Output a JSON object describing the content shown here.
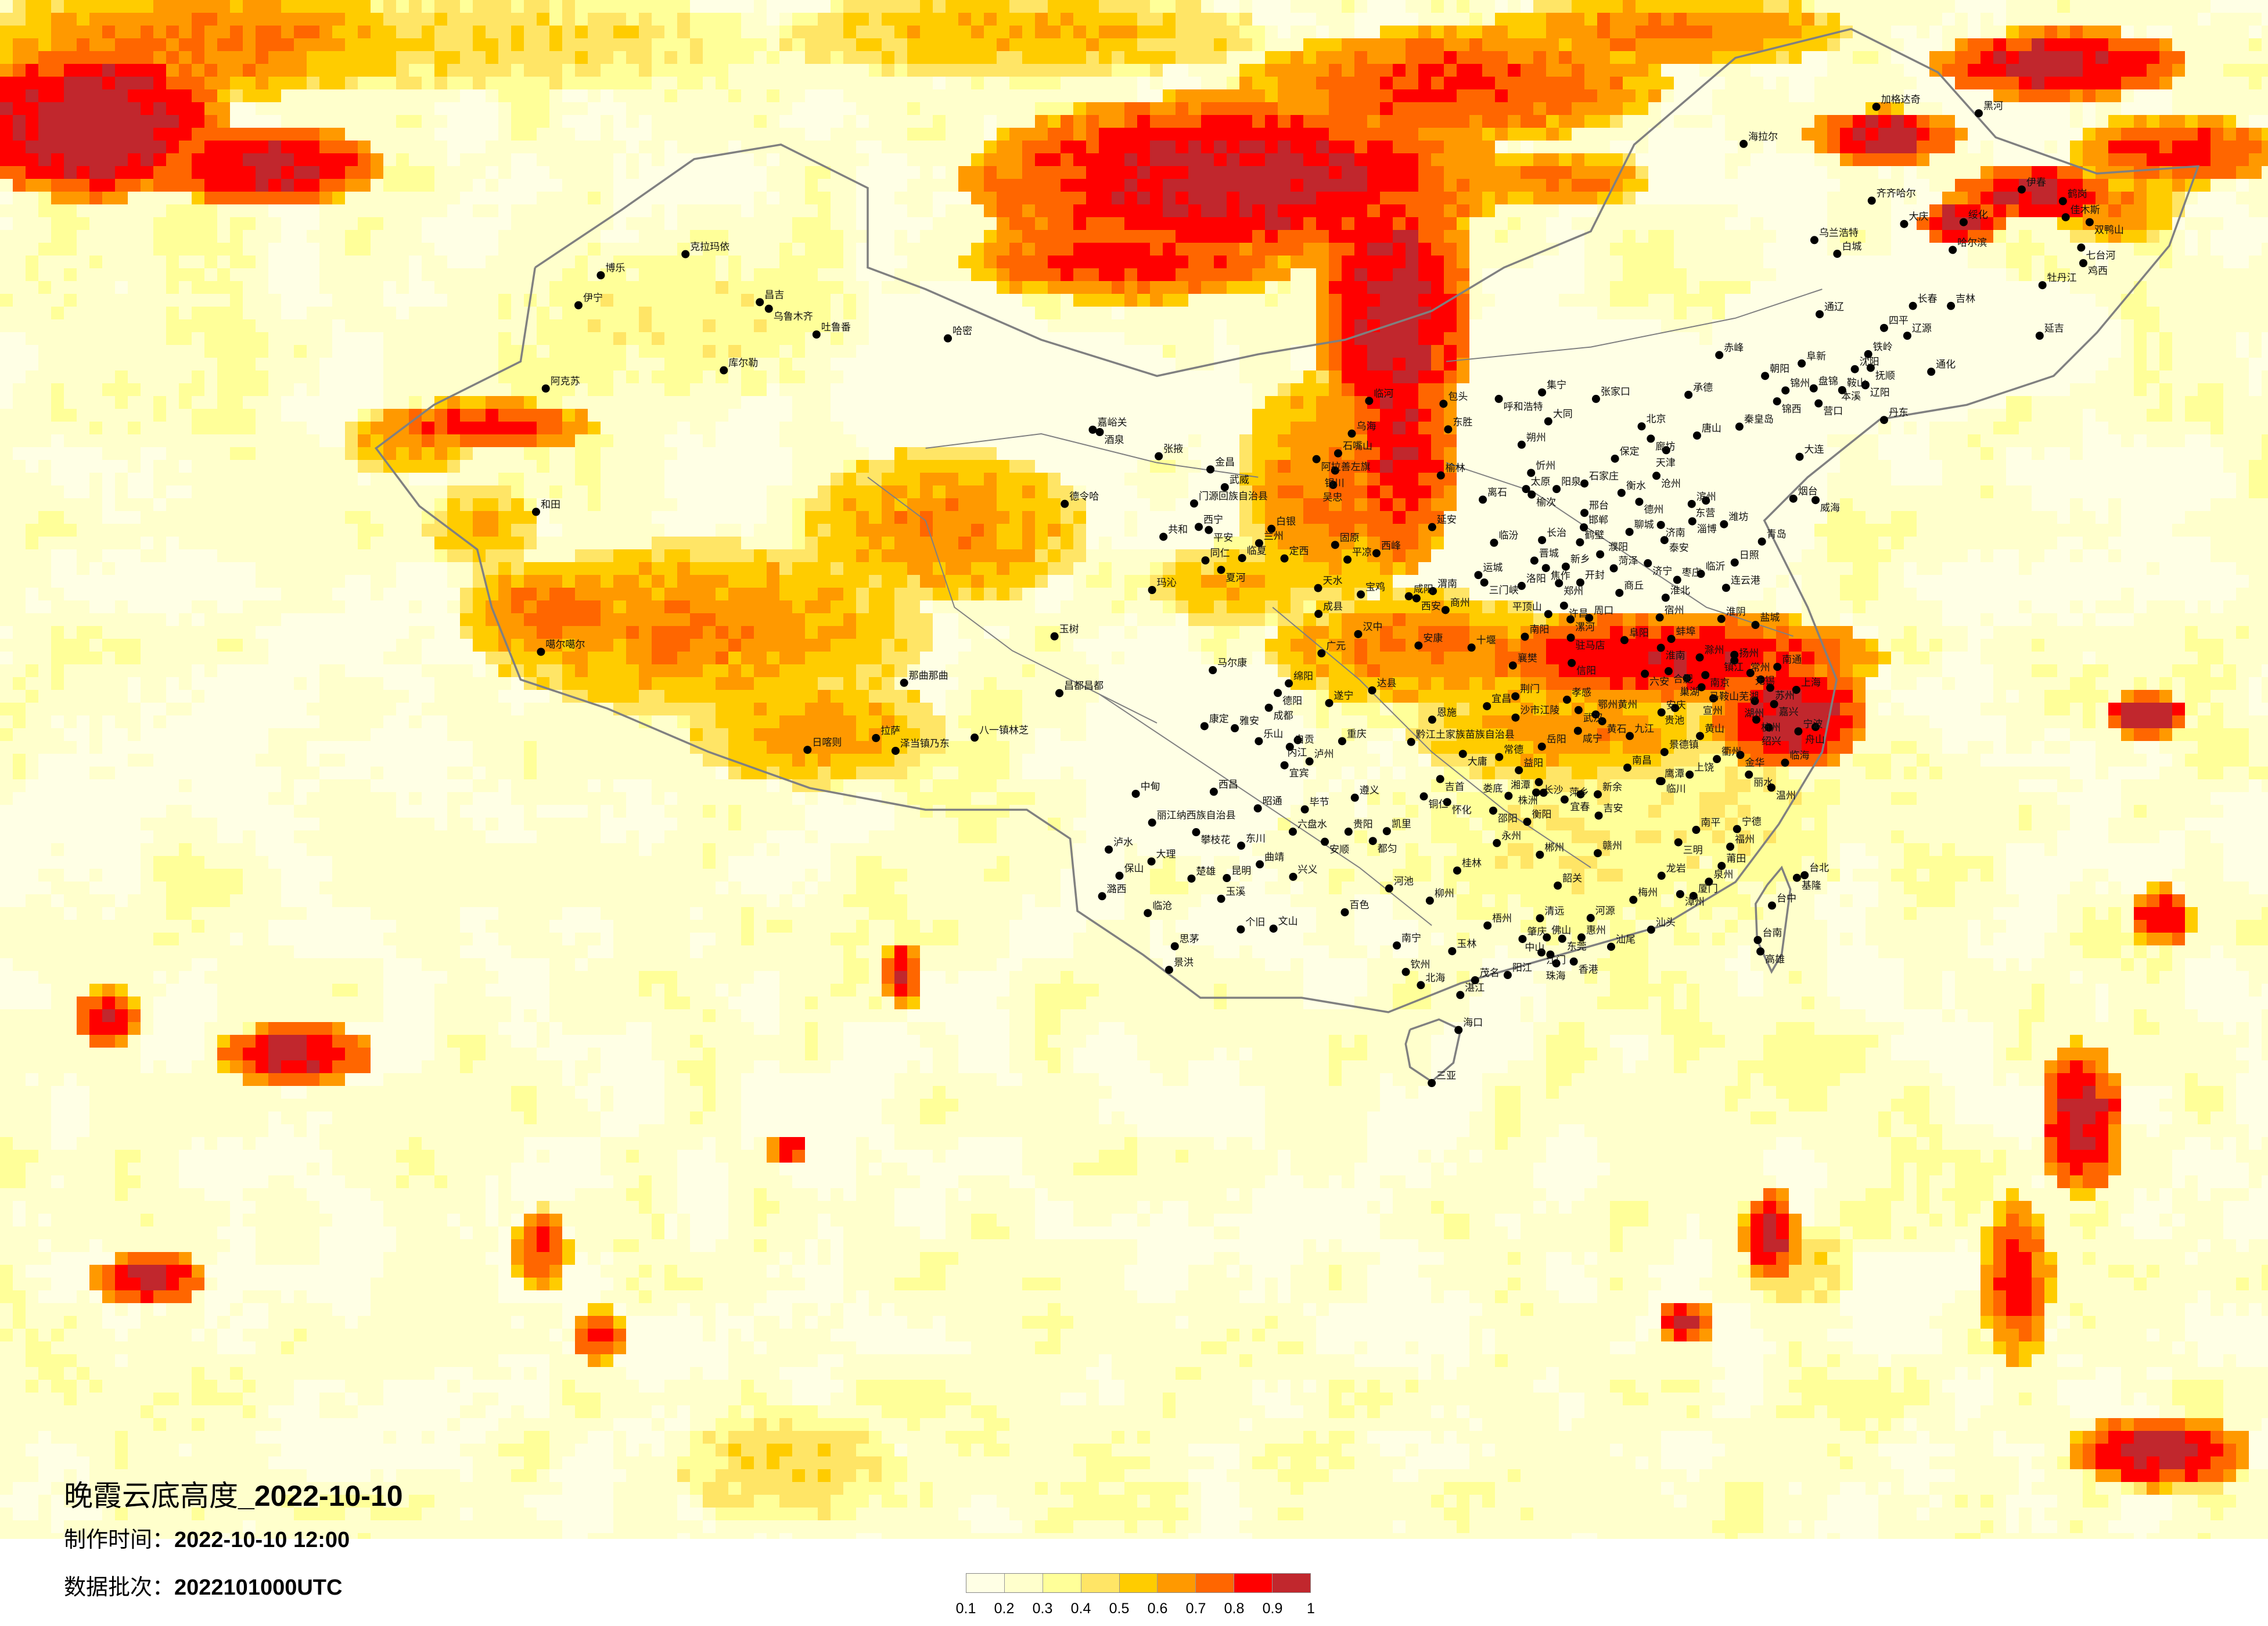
{
  "title": {
    "main": "晚霞云底高度",
    "separator": "_",
    "date": "2022-10-10"
  },
  "made_time": {
    "label": "制作时间：",
    "value": "2022-10-10 12:00"
  },
  "data_batch": {
    "label": "数据批次：",
    "value": "2022101000UTC"
  },
  "colorbar": {
    "colors": [
      "#FFFFE5",
      "#FFFFCC",
      "#FFFF99",
      "#FFE566",
      "#FFCC00",
      "#FF9900",
      "#FF6600",
      "#FF0000",
      "#C1272D"
    ],
    "labels": [
      "0.1",
      "0.2",
      "0.3",
      "0.4",
      "0.5",
      "0.6",
      "0.7",
      "0.8",
      "0.9",
      "1"
    ]
  },
  "border_color": "#808080",
  "cities": [
    "克拉玛依",
    "博乐",
    "伊宁",
    "昌吉",
    "乌鲁木齐",
    "吐鲁番",
    "哈密",
    "库尔勒",
    "阿克苏",
    "嘉峪关",
    "酒泉",
    "张掖",
    "金昌",
    "武威",
    "德令哈",
    "门源回族自治县",
    "西宁",
    "平安",
    "共和",
    "白银",
    "兰州",
    "临夏",
    "同仁",
    "夏河",
    "定西",
    "玛沁",
    "临河",
    "包头",
    "东胜",
    "乌海",
    "石嘴山",
    "阿拉善左旗",
    "银川",
    "吴忠",
    "榆林",
    "延安",
    "固原",
    "平凉",
    "西峰",
    "天水",
    "和田",
    "噶尔噶尔",
    "那曲那曲",
    "昌都昌都",
    "玉树",
    "拉萨",
    "日喀则",
    "泽当镇乃东",
    "八一镇林芝",
    "宝鸡",
    "咸阳",
    "西安",
    "渭南",
    "商州",
    "成县",
    "汉中",
    "安康",
    "十堰",
    "襄樊",
    "广元",
    "马尔康",
    "绵阳",
    "德阳",
    "成都",
    "达县",
    "遂宁",
    "康定",
    "雅安",
    "乐山",
    "自贡",
    "内江",
    "重庆",
    "宜宾",
    "泸州",
    "恩施",
    "沙市江陵",
    "黔江土家族苗族自治县",
    "大庸",
    "常德",
    "岳阳",
    "益阳",
    "长沙",
    "湘潭",
    "株洲",
    "娄底",
    "邵阳",
    "衡阳",
    "永州",
    "郴州",
    "吉首",
    "铜仁",
    "怀化",
    "遵义",
    "毕节",
    "昭通",
    "六盘水",
    "贵阳",
    "安顺",
    "凯里",
    "都匀",
    "西昌",
    "中甸",
    "丽江纳西族自治县",
    "攀枝花",
    "东川",
    "泸水",
    "大理",
    "保山",
    "潞西",
    "楚雄",
    "昆明",
    "曲靖",
    "兴义",
    "玉溪",
    "临沧",
    "个旧",
    "文山",
    "思茅",
    "景洪",
    "百色",
    "河池",
    "柳州",
    "桂林",
    "梧州",
    "南宁",
    "玉林",
    "钦州",
    "北海",
    "集宁",
    "呼和浩特",
    "张家口",
    "大同",
    "朔州",
    "忻州",
    "太原",
    "榆次",
    "阳泉",
    "离石",
    "临汾",
    "长治",
    "晋城",
    "运城",
    "三门峡",
    "洛阳",
    "焦作",
    "新乡",
    "鹤壁",
    "郑州",
    "开封",
    "许昌",
    "平顶山",
    "漯河",
    "周口",
    "驻马店",
    "信阳",
    "南阳",
    "商丘",
    "北京",
    "廊坊",
    "天津",
    "唐山",
    "承德",
    "赤峰",
    "保定",
    "沧州",
    "石家庄",
    "衡水",
    "邢台",
    "邯郸",
    "德州",
    "聊城",
    "济南",
    "泰安",
    "滨州",
    "东营",
    "淄博",
    "潍坊",
    "烟台",
    "威海",
    "青岛",
    "日照",
    "临沂",
    "枣庄",
    "济宁",
    "菏泽",
    "濮阳",
    "连云港",
    "淮北",
    "宿州",
    "淮阴",
    "盐城",
    "阜阳",
    "蚌埠",
    "淮南",
    "滁州",
    "扬州",
    "镇江",
    "南通",
    "秦皇岛",
    "六安",
    "合肥",
    "巢湖",
    "南京",
    "马鞍山芜湖",
    "无锡",
    "常州",
    "苏州",
    "上海",
    "湖州",
    "嘉兴",
    "杭州",
    "绍兴",
    "宁波",
    "舟山",
    "宣州",
    "安庆",
    "贵池",
    "黄山",
    "九江",
    "景德镇",
    "荆门",
    "宜昌",
    "孝感",
    "武汉",
    "鄂州黄州",
    "黄石",
    "咸宁",
    "南昌",
    "鹰潭",
    "上饶",
    "临川",
    "衢州",
    "金华",
    "丽水",
    "临海",
    "温州",
    "萍乡",
    "宜春",
    "新余",
    "吉安",
    "南平",
    "三明",
    "宁德",
    "福州",
    "莆田",
    "泉州",
    "厦门",
    "漳州",
    "龙岩",
    "赣州",
    "梅州",
    "汕头",
    "汕尾",
    "韶关",
    "清远",
    "河源",
    "惠州",
    "东莞",
    "佛山",
    "肇庆",
    "江门",
    "中山",
    "珠海",
    "香港",
    "阳江",
    "茂名",
    "湛江",
    "海口",
    "台北",
    "基隆",
    "台中",
    "台南",
    "高雄",
    "三亚",
    "加格达奇",
    "黑河",
    "海拉尔",
    "齐齐哈尔",
    "大庆",
    "绥化",
    "伊春",
    "鹤岗",
    "佳木斯",
    "双鸭山",
    "七台河",
    "鸡西",
    "牡丹江",
    "哈尔滨",
    "乌兰浩特",
    "白城",
    "长春",
    "吉林",
    "通辽",
    "四平",
    "辽源",
    "延吉",
    "铁岭",
    "沈阳",
    "抚顺",
    "阜新",
    "朝阳",
    "锦州",
    "锦西",
    "盘锦",
    "辽阳",
    "鞍山",
    "本溪",
    "营口",
    "通化",
    "丹东",
    "大连"
  ]
}
